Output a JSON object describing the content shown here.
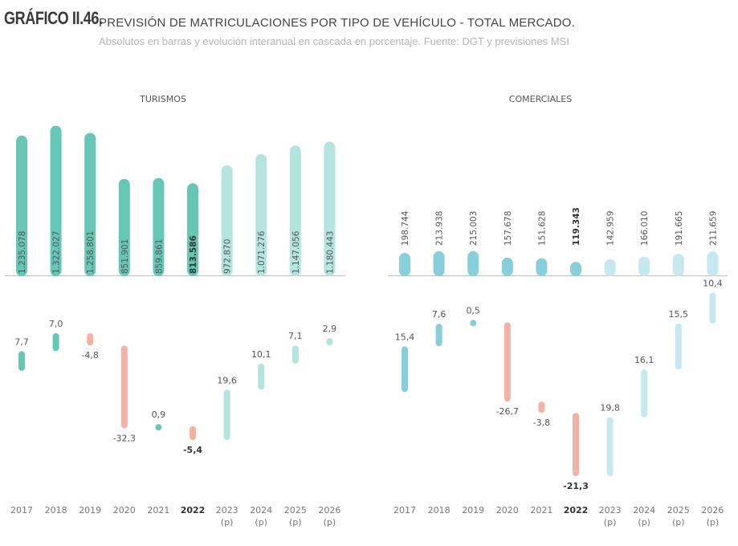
{
  "header": {
    "figure_number": "GRÁFICO II.46.",
    "title": "PREVISIÓN DE MATRICULACIONES POR TIPO DE VEHÍCULO - TOTAL MERCADO.",
    "subtitle": "Absolutos en barras y evolución interanual en cascada en porcentaje. Fuente: DGT y previsiones MSI"
  },
  "colors": {
    "turismos_actual": "#67c7b6",
    "turismos_forecast": "#b3e4de",
    "comerciales_actual": "#86cfdb",
    "comerciales_forecast": "#c5e9ef",
    "negative": "#f4b2a6",
    "axis": "#bdbdbd",
    "text": "#555555"
  },
  "chart_data": [
    {
      "type": "bar",
      "title": "TURISMOS",
      "categories": [
        "2017",
        "2018",
        "2019",
        "2020",
        "2021",
        "2022",
        "2023",
        "2024",
        "2025",
        "2026"
      ],
      "category_sublabels": [
        "",
        "",
        "",
        "",
        "",
        "",
        "(p)",
        "(p)",
        "(p)",
        "(p)"
      ],
      "highlight_category": "2022",
      "forecast_from_index": 6,
      "values": [
        1235078,
        1322027,
        1258801,
        851901,
        859861,
        813586,
        972870,
        1071276,
        1147056,
        1180443
      ],
      "value_labels": [
        "1.235.078",
        "1.322.027",
        "1.258.801",
        "851.901",
        "859.861",
        "813.586",
        "972.870",
        "1.071.276",
        "1.147.056",
        "1.180.443"
      ],
      "ylim": [
        0,
        1322027
      ],
      "waterfall": {
        "type": "waterfall",
        "values": [
          7.7,
          7.0,
          -4.8,
          -32.3,
          0.9,
          -5.4,
          19.6,
          10.1,
          7.1,
          2.9
        ],
        "labels": [
          "7,7",
          "7,0",
          "-4,8",
          "-32,3",
          "0,9",
          "-5,4",
          "19,6",
          "10,1",
          "7,1",
          "2,9"
        ]
      }
    },
    {
      "type": "bar",
      "title": "COMERCIALES",
      "categories": [
        "2017",
        "2018",
        "2019",
        "2020",
        "2021",
        "2022",
        "2023",
        "2024",
        "2025",
        "2026"
      ],
      "category_sublabels": [
        "",
        "",
        "",
        "",
        "",
        "",
        "(p)",
        "(p)",
        "(p)",
        "(p)"
      ],
      "highlight_category": "2022",
      "forecast_from_index": 6,
      "values": [
        198744,
        213938,
        215003,
        157678,
        151628,
        119343,
        142959,
        166010,
        191665,
        211659
      ],
      "value_labels": [
        "198.744",
        "213.938",
        "215.003",
        "157.678",
        "151.628",
        "119.343",
        "142.959",
        "166.010",
        "191.665",
        "211.659"
      ],
      "ylim": [
        0,
        1322027
      ],
      "waterfall": {
        "type": "waterfall",
        "values": [
          15.4,
          7.6,
          0.5,
          -26.7,
          -3.8,
          -21.3,
          19.8,
          16.1,
          15.5,
          10.4
        ],
        "labels": [
          "15,4",
          "7,6",
          "0,5",
          "-26,7",
          "-3,8",
          "-21,3",
          "19,8",
          "16,1",
          "15,5",
          "10,4"
        ]
      }
    }
  ]
}
